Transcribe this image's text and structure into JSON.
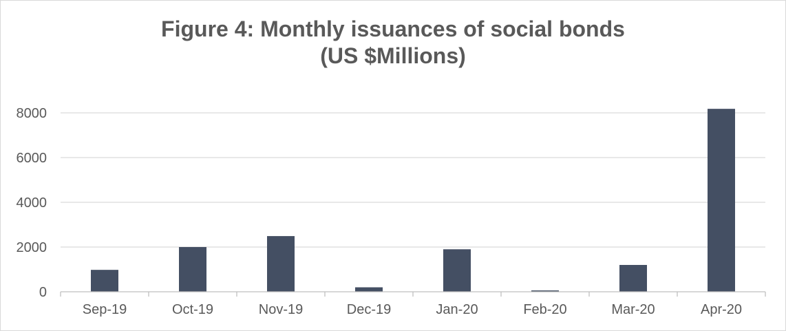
{
  "chart_data": {
    "type": "bar",
    "title": "Figure 4: Monthly issuances of social bonds",
    "subtitle": "(US $Millions)",
    "categories": [
      "Sep-19",
      "Oct-19",
      "Nov-19",
      "Dec-19",
      "Jan-20",
      "Feb-20",
      "Mar-20",
      "Apr-20"
    ],
    "values": [
      980,
      2000,
      2490,
      200,
      1900,
      60,
      1200,
      8180
    ],
    "ylim": [
      0,
      8000
    ],
    "yticks": [
      0,
      2000,
      4000,
      6000,
      8000
    ],
    "ytick_labels": [
      "0",
      "2000",
      "4000",
      "6000",
      "8000"
    ],
    "grid": true,
    "legend": "none",
    "colors": {
      "bar": "#444f63",
      "grid": "#d9d9d9",
      "axis": "#bfbfbf",
      "text": "#595959"
    }
  }
}
